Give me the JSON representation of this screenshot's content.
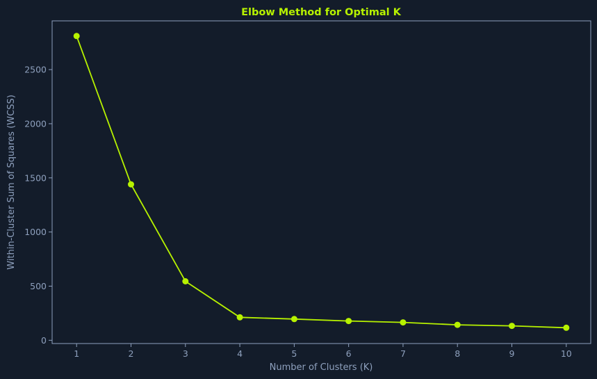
{
  "chart_data": {
    "type": "line",
    "title": "Elbow Method for Optimal K",
    "xlabel": "Number of Clusters (K)",
    "ylabel": "Within-Cluster Sum of Squares (WCSS)",
    "x": [
      1,
      2,
      3,
      4,
      5,
      6,
      7,
      8,
      9,
      10
    ],
    "series": [
      {
        "values": [
          2810,
          1440,
          545,
          212,
          196,
          178,
          165,
          143,
          133,
          116
        ],
        "color": "#b7f200",
        "marker": "circle"
      }
    ],
    "xlim": [
      0.55,
      10.45
    ],
    "ylim": [
      -30,
      2950
    ],
    "xticks": [
      1,
      2,
      3,
      4,
      5,
      6,
      7,
      8,
      9,
      10
    ],
    "yticks": [
      0,
      500,
      1000,
      1500,
      2000,
      2500
    ],
    "grid": false,
    "legend": "none",
    "colors": {
      "background": "#131c2a",
      "axes": "#8ea0bd",
      "title": "#b7f200",
      "line": "#b7f200"
    }
  }
}
